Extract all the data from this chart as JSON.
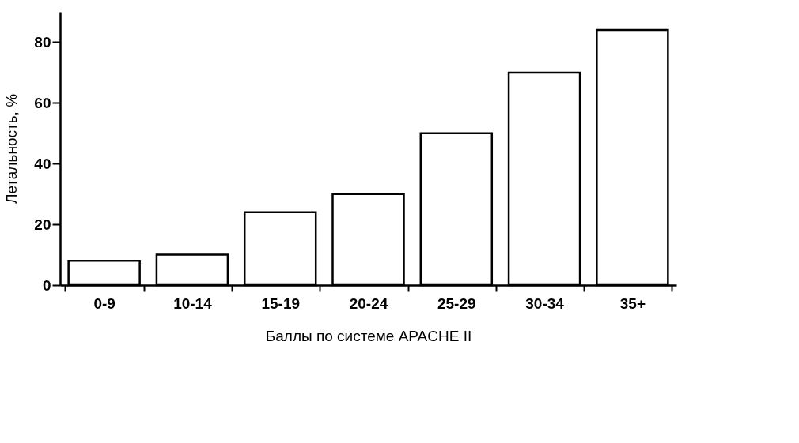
{
  "chart_data": {
    "type": "bar",
    "xlabel": "Баллы по системе APACHE II",
    "ylabel": "Летальность, %",
    "categories": [
      "0-9",
      "10-14",
      "15-19",
      "20-24",
      "25-29",
      "30-34",
      "35+"
    ],
    "values": [
      8,
      10,
      24,
      30,
      50,
      70,
      84
    ],
    "color": "#ffffff",
    "ylim": [
      0,
      90
    ],
    "yticks": [
      0,
      20,
      40,
      60,
      80
    ],
    "grid": false
  }
}
